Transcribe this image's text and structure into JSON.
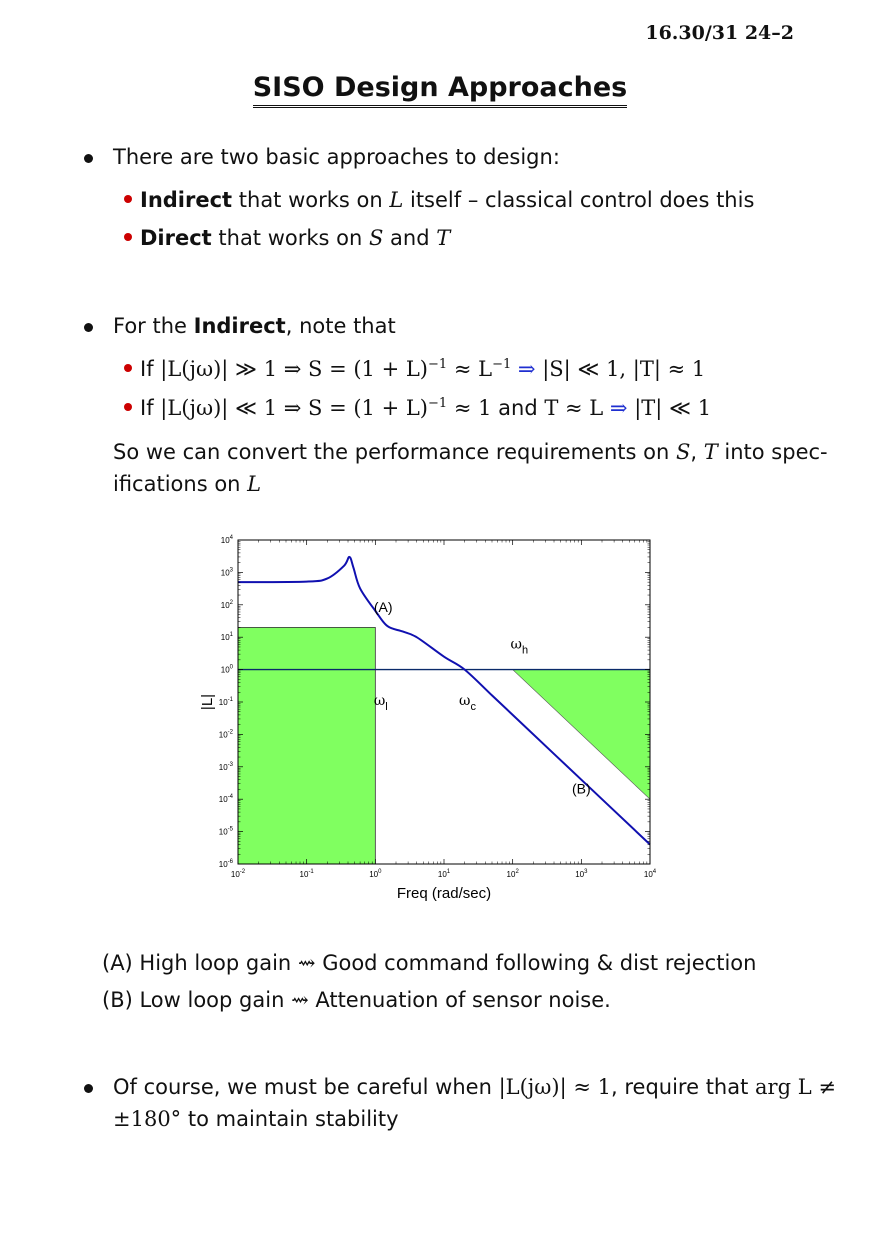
{
  "header": "16.30/31 24–2",
  "title": "SISO Design Approaches",
  "b1": {
    "text": "There are two basic approaches to design:"
  },
  "s1": {
    "bold": "Indirect",
    "t1": " that works on ",
    "L": "L",
    "t2": " itself – classical control does this"
  },
  "s2": {
    "bold": "Direct",
    "t1": " that works on ",
    "S": "S",
    "and": " and ",
    "T": "T"
  },
  "b2": {
    "t1": "For the ",
    "bold": "Indirect",
    "t2": ", note that"
  },
  "s3": {
    "if": "If ",
    "m1": "|L(jω)| ≫ 1 ⇒ S = (1 + L)",
    "exp1": "−1",
    "m2": " ≈ L",
    "exp2": "−1",
    "arrow": " ⇒ ",
    "m3": "|S| ≪ 1,",
    "m4": " |T| ≈ 1"
  },
  "s4": {
    "if": "If ",
    "m1": "|L(jω)| ≪ 1 ⇒ S = (1 + L)",
    "exp1": "−1",
    "m2": " ≈ 1",
    "and": " and ",
    "m3": "T ≈ L",
    "arrow": " ⇒ ",
    "m4": "|T| ≪ 1"
  },
  "para": {
    "l1a": "So we can convert the performance requirements on ",
    "S": "S",
    "comma": ", ",
    "T": "T",
    "l1b": " into spec-",
    "l2a": "ifications on ",
    "L": "L"
  },
  "chart_data": {
    "type": "line",
    "title": "",
    "xlabel": "Freq (rad/sec)",
    "ylabel": "|L|",
    "xscale": "log",
    "yscale": "log",
    "xlim": [
      0.01,
      10000
    ],
    "ylim": [
      1e-06,
      10000
    ],
    "xticks": [
      "10-2",
      "10-1",
      "100",
      "101",
      "102",
      "103",
      "104"
    ],
    "yticks": [
      "104",
      "103",
      "102",
      "101",
      "100",
      "10-1",
      "10-2",
      "10-3",
      "10-4",
      "10-5",
      "10-6"
    ],
    "series": [
      {
        "color": "#1010b0",
        "x": [
          0.01,
          0.1,
          0.2,
          0.35,
          0.42,
          0.48,
          0.6,
          1.0,
          1.5,
          2.5,
          4,
          10,
          20,
          50,
          100,
          1000,
          10000
        ],
        "y": [
          500,
          520,
          650,
          1600,
          3000,
          1400,
          320,
          65,
          22,
          15,
          10,
          2.5,
          1.0,
          0.16,
          0.04,
          0.0004,
          4e-06
        ]
      }
    ],
    "reference_line": {
      "y": 1,
      "color": "#0a2a6a"
    },
    "regions": [
      {
        "label": "(A)",
        "x": [
          0.01,
          1
        ],
        "y": [
          1e-06,
          20
        ],
        "color": "#80ff60"
      },
      {
        "label": "(B)",
        "x": [
          100,
          10000
        ],
        "y": [
          0.0001,
          1
        ],
        "shape": "triangle",
        "color": "#80ff60"
      }
    ],
    "annotations": [
      {
        "text": "ωl",
        "base": "ω",
        "sub": "l"
      },
      {
        "text": "ωc",
        "base": "ω",
        "sub": "c"
      },
      {
        "text": "ωh",
        "base": "ω",
        "sub": "h"
      }
    ]
  },
  "notes": {
    "a": {
      "label": "(A) High loop gain ",
      "sym": "⇝",
      "rest": " Good command following & dist rejection"
    },
    "b": {
      "label": "(B) Low loop gain ",
      "sym": "⇝",
      "rest": " Attenuation of sensor noise."
    }
  },
  "b3": {
    "t1": "Of course, we must be careful when ",
    "m1": "|L(jω)| ≈ 1",
    "t2": ", require that ",
    "m2": "arg L ≠",
    "m3": "±180°",
    "t3": " to maintain stability"
  }
}
